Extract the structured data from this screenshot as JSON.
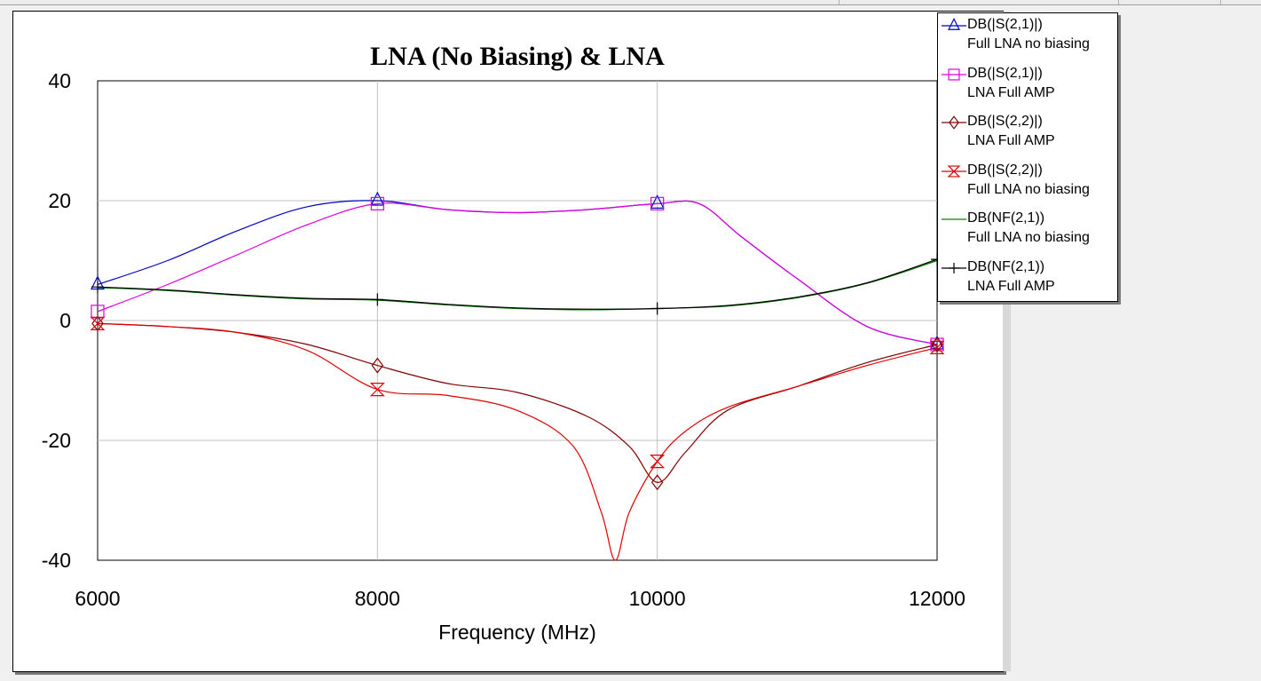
{
  "chart_data": {
    "type": "line",
    "title": "LNA (No Biasing) & LNA",
    "xlabel": "Frequency (MHz)",
    "ylabel": "",
    "xlim": [
      6000,
      12000
    ],
    "ylim": [
      -40,
      40
    ],
    "xticks": [
      6000,
      8000,
      10000,
      12000
    ],
    "yticks": [
      40,
      20,
      0,
      -20,
      -40
    ],
    "grid": true,
    "legend_position": "top-right",
    "series": [
      {
        "name": "DB(|S(2,1)|)",
        "name2": "Full LNA no biasing",
        "color": "#0000c8",
        "marker": "triangle",
        "x": [
          6000,
          6500,
          7000,
          7500,
          8000,
          8500,
          9000,
          9500,
          10000,
          10300,
          10600,
          11000,
          11500,
          12000
        ],
        "y": [
          6,
          10,
          15,
          19,
          20,
          18.5,
          18,
          18.5,
          19.5,
          19.5,
          14,
          7,
          -1,
          -4
        ]
      },
      {
        "name": "DB(|S(2,1)|)",
        "name2": "LNA Full AMP",
        "color": "#e000e0",
        "marker": "square",
        "x": [
          6000,
          6500,
          7000,
          7500,
          8000,
          8500,
          9000,
          9500,
          10000,
          10300,
          10600,
          11000,
          11500,
          12000
        ],
        "y": [
          1.5,
          6,
          11,
          16,
          19.5,
          18.5,
          18,
          18.5,
          19.5,
          19.5,
          14,
          7,
          -1,
          -4
        ]
      },
      {
        "name": "DB(|S(2,2)|)",
        "name2": "LNA Full AMP",
        "color": "#800000",
        "marker": "diamond",
        "x": [
          6000,
          6500,
          7000,
          7500,
          8000,
          8500,
          9000,
          9500,
          9800,
          10000,
          10200,
          10500,
          11000,
          11500,
          12000
        ],
        "y": [
          -0.5,
          -1,
          -2,
          -4,
          -7.5,
          -10.5,
          -12,
          -16,
          -21,
          -27,
          -22,
          -15,
          -11,
          -7,
          -4
        ]
      },
      {
        "name": "DB(|S(2,2)|)",
        "name2": "Full LNA no biasing",
        "color": "#e00000",
        "marker": "hourglass",
        "x": [
          6000,
          6500,
          7000,
          7500,
          8000,
          8500,
          9000,
          9400,
          9600,
          9700,
          9800,
          10000,
          10200,
          10500,
          11000,
          11500,
          12000
        ],
        "y": [
          -0.5,
          -1,
          -2,
          -5,
          -11.5,
          -12.5,
          -15,
          -21,
          -32,
          -40,
          -32,
          -23.5,
          -18.5,
          -14.5,
          -11,
          -7.5,
          -4.5
        ]
      },
      {
        "name": "DB(NF(2,1))",
        "name2": "Full LNA no biasing",
        "color": "#008000",
        "marker": "none",
        "x": [
          6000,
          6500,
          7000,
          7500,
          8000,
          8500,
          9000,
          9500,
          10000,
          10500,
          11000,
          11500,
          12000
        ],
        "y": [
          5.5,
          5,
          4.2,
          3.6,
          3.4,
          2.6,
          2,
          1.8,
          2,
          2.4,
          3.8,
          6.2,
          10
        ]
      },
      {
        "name": "DB(NF(2,1))",
        "name2": "LNA Full AMP",
        "color": "#000000",
        "marker": "plus",
        "x": [
          6000,
          6500,
          7000,
          7500,
          8000,
          8500,
          9000,
          9500,
          10000,
          10500,
          11000,
          11500,
          12000
        ],
        "y": [
          5.6,
          5.1,
          4.3,
          3.7,
          3.5,
          2.7,
          2.1,
          1.9,
          2,
          2.5,
          3.9,
          6.3,
          10.2
        ]
      }
    ],
    "marker_x": [
      6000,
      8000,
      10000,
      12000
    ]
  }
}
